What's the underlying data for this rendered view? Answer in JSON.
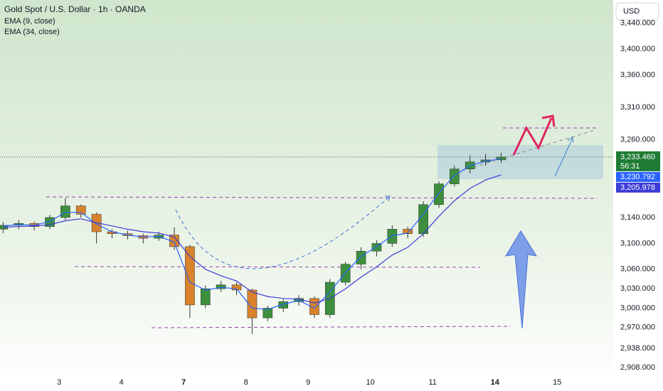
{
  "chart_data": {
    "type": "candlestick",
    "title": "Gold Spot / U.S. Dollar · 1h · OANDA",
    "currency": "USD",
    "up_color": "#3d8f3d",
    "down_color": "#d9822b",
    "xlim": [
      -0.95,
      8.9
    ],
    "xticks": [
      {
        "value": 0,
        "label": "3"
      },
      {
        "value": 1,
        "label": "4"
      },
      {
        "value": 2,
        "label": "7",
        "bold": true
      },
      {
        "value": 3,
        "label": "8"
      },
      {
        "value": 4,
        "label": "9"
      },
      {
        "value": 5,
        "label": "10"
      },
      {
        "value": 6,
        "label": "11"
      },
      {
        "value": 7,
        "label": "14",
        "bold": true
      },
      {
        "value": 8,
        "label": "15"
      }
    ],
    "ylim": [
      2894,
      3476
    ],
    "yticks": [
      {
        "value": 3440,
        "label": "3,440.000"
      },
      {
        "value": 3400,
        "label": "3,400.000"
      },
      {
        "value": 3360,
        "label": "3,360.000"
      },
      {
        "value": 3310,
        "label": "3,310.000"
      },
      {
        "value": 3260,
        "label": "3,260.000"
      },
      {
        "value": 3140,
        "label": "3,140.000"
      },
      {
        "value": 3100,
        "label": "3,100.000"
      },
      {
        "value": 3060,
        "label": "3,060.000"
      },
      {
        "value": 3030,
        "label": "3,030.000"
      },
      {
        "value": 3000,
        "label": "3,000.000"
      },
      {
        "value": 2970,
        "label": "2,970.000"
      },
      {
        "value": 2938,
        "label": "2,938.000"
      },
      {
        "value": 2908,
        "label": "2,908.000"
      }
    ],
    "x": [
      -0.9,
      -0.65,
      -0.4,
      -0.15,
      0.1,
      0.35,
      0.6,
      0.85,
      1.1,
      1.35,
      1.6,
      1.85,
      2.1,
      2.35,
      2.6,
      2.85,
      3.1,
      3.35,
      3.6,
      3.85,
      4.1,
      4.35,
      4.6,
      4.85,
      5.1,
      5.35,
      5.6,
      5.85,
      6.1,
      6.35,
      6.6,
      6.85,
      7.1
    ],
    "open": [
      3122,
      3128,
      3131,
      3126,
      3140,
      3158,
      3145,
      3118,
      3115,
      3112,
      3108,
      3113,
      3095,
      3005,
      3030,
      3036,
      3028,
      2985,
      3000,
      3010,
      3015,
      2990,
      3040,
      3068,
      3088,
      3100,
      3122,
      3115,
      3160,
      3192,
      3215,
      3226,
      3229
    ],
    "high": [
      3133,
      3136,
      3134,
      3144,
      3170,
      3160,
      3148,
      3122,
      3120,
      3115,
      3118,
      3125,
      3098,
      3035,
      3042,
      3040,
      3030,
      3004,
      3014,
      3020,
      3018,
      3045,
      3072,
      3094,
      3105,
      3128,
      3126,
      3165,
      3196,
      3220,
      3236,
      3238,
      3240
    ],
    "low": [
      3116,
      3122,
      3120,
      3122,
      3136,
      3140,
      3100,
      3108,
      3106,
      3100,
      3104,
      3090,
      2985,
      3000,
      3025,
      3020,
      2960,
      2980,
      2994,
      3004,
      2985,
      2985,
      3035,
      3060,
      3080,
      3095,
      3108,
      3110,
      3155,
      3188,
      3208,
      3220,
      3224
    ],
    "close": [
      3128,
      3131,
      3126,
      3140,
      3158,
      3145,
      3118,
      3115,
      3112,
      3108,
      3113,
      3095,
      3005,
      3030,
      3036,
      3028,
      2985,
      3000,
      3010,
      3015,
      2990,
      3040,
      3068,
      3088,
      3100,
      3122,
      3115,
      3160,
      3192,
      3215,
      3226,
      3229,
      3233.46
    ],
    "last_label": "3,233.460",
    "countdown": "56:31",
    "last_color": "#1e7b34",
    "series": [
      {
        "name": "EMA (9, close)",
        "color": "#2962ff",
        "last_label": "3,230.792",
        "values": [
          3127,
          3129,
          3128,
          3134,
          3148,
          3148,
          3130,
          3118,
          3113,
          3110,
          3111,
          3102,
          3040,
          3028,
          3032,
          3030,
          3000,
          2998,
          3006,
          3012,
          3000,
          3025,
          3055,
          3080,
          3095,
          3112,
          3116,
          3145,
          3178,
          3205,
          3220,
          3227,
          3230.792
        ]
      },
      {
        "name": "EMA (34, close)",
        "color": "#3c3cd6",
        "last_label": "3,205.978",
        "values": [
          3125,
          3126,
          3127,
          3129,
          3135,
          3138,
          3132,
          3127,
          3122,
          3118,
          3116,
          3110,
          3080,
          3060,
          3050,
          3042,
          3025,
          3018,
          3015,
          3014,
          3008,
          3015,
          3030,
          3048,
          3064,
          3082,
          3094,
          3115,
          3142,
          3166,
          3185,
          3198,
          3205.978
        ]
      }
    ]
  }
}
